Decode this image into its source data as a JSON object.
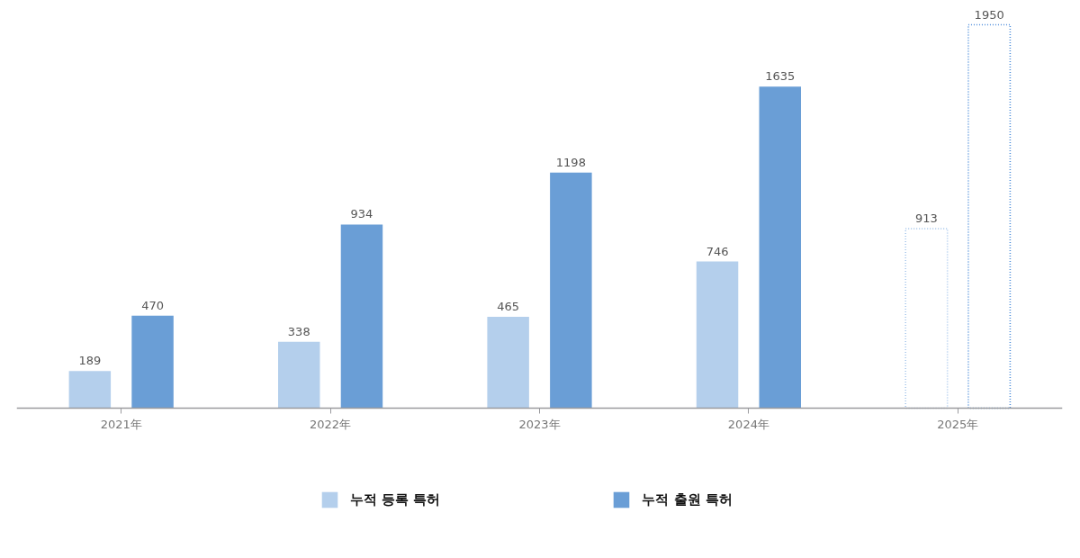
{
  "chart_data": {
    "type": "bar",
    "categories": [
      "2021年",
      "2022年",
      "2023年",
      "2024年",
      "2025年"
    ],
    "series": [
      {
        "name": "누적 등록 특허",
        "color": "#b4cfec",
        "values": [
          189,
          338,
          465,
          746,
          null
        ]
      },
      {
        "name": "누적 출원 특허",
        "color": "#6a9ed6",
        "values": [
          470,
          934,
          1198,
          1635,
          null
        ]
      },
      {
        "color": "#a9c8ec",
        "line_style": "dotted",
        "values": [
          null,
          null,
          null,
          null,
          913
        ]
      },
      {
        "color": "#4f8fdb",
        "line_style": "dotted",
        "values": [
          null,
          null,
          null,
          null,
          1950
        ]
      }
    ],
    "data_labels": true,
    "legend": "bottom",
    "tick_labels": "x"
  }
}
